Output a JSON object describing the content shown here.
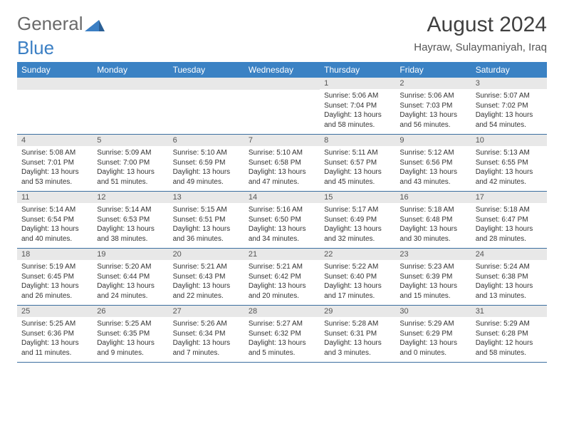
{
  "logo": {
    "text1": "General",
    "text2": "Blue"
  },
  "title": "August 2024",
  "location": "Hayraw, Sulaymaniyah, Iraq",
  "colors": {
    "header_bg": "#3b82c4",
    "header_text": "#ffffff",
    "daynum_bg": "#e8e8e8",
    "row_border": "#3b6fa0",
    "logo_gray": "#6a6a6a",
    "logo_blue": "#3b7fc4",
    "body_text": "#333333",
    "page_bg": "#ffffff"
  },
  "typography": {
    "title_fontsize": 30,
    "location_fontsize": 15,
    "weekday_fontsize": 12,
    "daynum_fontsize": 11,
    "cell_fontsize": 10
  },
  "weekdays": [
    "Sunday",
    "Monday",
    "Tuesday",
    "Wednesday",
    "Thursday",
    "Friday",
    "Saturday"
  ],
  "grid": [
    [
      null,
      null,
      null,
      null,
      {
        "n": "1",
        "sr": "5:06 AM",
        "ss": "7:04 PM",
        "dl": "13 hours and 58 minutes."
      },
      {
        "n": "2",
        "sr": "5:06 AM",
        "ss": "7:03 PM",
        "dl": "13 hours and 56 minutes."
      },
      {
        "n": "3",
        "sr": "5:07 AM",
        "ss": "7:02 PM",
        "dl": "13 hours and 54 minutes."
      }
    ],
    [
      {
        "n": "4",
        "sr": "5:08 AM",
        "ss": "7:01 PM",
        "dl": "13 hours and 53 minutes."
      },
      {
        "n": "5",
        "sr": "5:09 AM",
        "ss": "7:00 PM",
        "dl": "13 hours and 51 minutes."
      },
      {
        "n": "6",
        "sr": "5:10 AM",
        "ss": "6:59 PM",
        "dl": "13 hours and 49 minutes."
      },
      {
        "n": "7",
        "sr": "5:10 AM",
        "ss": "6:58 PM",
        "dl": "13 hours and 47 minutes."
      },
      {
        "n": "8",
        "sr": "5:11 AM",
        "ss": "6:57 PM",
        "dl": "13 hours and 45 minutes."
      },
      {
        "n": "9",
        "sr": "5:12 AM",
        "ss": "6:56 PM",
        "dl": "13 hours and 43 minutes."
      },
      {
        "n": "10",
        "sr": "5:13 AM",
        "ss": "6:55 PM",
        "dl": "13 hours and 42 minutes."
      }
    ],
    [
      {
        "n": "11",
        "sr": "5:14 AM",
        "ss": "6:54 PM",
        "dl": "13 hours and 40 minutes."
      },
      {
        "n": "12",
        "sr": "5:14 AM",
        "ss": "6:53 PM",
        "dl": "13 hours and 38 minutes."
      },
      {
        "n": "13",
        "sr": "5:15 AM",
        "ss": "6:51 PM",
        "dl": "13 hours and 36 minutes."
      },
      {
        "n": "14",
        "sr": "5:16 AM",
        "ss": "6:50 PM",
        "dl": "13 hours and 34 minutes."
      },
      {
        "n": "15",
        "sr": "5:17 AM",
        "ss": "6:49 PM",
        "dl": "13 hours and 32 minutes."
      },
      {
        "n": "16",
        "sr": "5:18 AM",
        "ss": "6:48 PM",
        "dl": "13 hours and 30 minutes."
      },
      {
        "n": "17",
        "sr": "5:18 AM",
        "ss": "6:47 PM",
        "dl": "13 hours and 28 minutes."
      }
    ],
    [
      {
        "n": "18",
        "sr": "5:19 AM",
        "ss": "6:45 PM",
        "dl": "13 hours and 26 minutes."
      },
      {
        "n": "19",
        "sr": "5:20 AM",
        "ss": "6:44 PM",
        "dl": "13 hours and 24 minutes."
      },
      {
        "n": "20",
        "sr": "5:21 AM",
        "ss": "6:43 PM",
        "dl": "13 hours and 22 minutes."
      },
      {
        "n": "21",
        "sr": "5:21 AM",
        "ss": "6:42 PM",
        "dl": "13 hours and 20 minutes."
      },
      {
        "n": "22",
        "sr": "5:22 AM",
        "ss": "6:40 PM",
        "dl": "13 hours and 17 minutes."
      },
      {
        "n": "23",
        "sr": "5:23 AM",
        "ss": "6:39 PM",
        "dl": "13 hours and 15 minutes."
      },
      {
        "n": "24",
        "sr": "5:24 AM",
        "ss": "6:38 PM",
        "dl": "13 hours and 13 minutes."
      }
    ],
    [
      {
        "n": "25",
        "sr": "5:25 AM",
        "ss": "6:36 PM",
        "dl": "13 hours and 11 minutes."
      },
      {
        "n": "26",
        "sr": "5:25 AM",
        "ss": "6:35 PM",
        "dl": "13 hours and 9 minutes."
      },
      {
        "n": "27",
        "sr": "5:26 AM",
        "ss": "6:34 PM",
        "dl": "13 hours and 7 minutes."
      },
      {
        "n": "28",
        "sr": "5:27 AM",
        "ss": "6:32 PM",
        "dl": "13 hours and 5 minutes."
      },
      {
        "n": "29",
        "sr": "5:28 AM",
        "ss": "6:31 PM",
        "dl": "13 hours and 3 minutes."
      },
      {
        "n": "30",
        "sr": "5:29 AM",
        "ss": "6:29 PM",
        "dl": "13 hours and 0 minutes."
      },
      {
        "n": "31",
        "sr": "5:29 AM",
        "ss": "6:28 PM",
        "dl": "12 hours and 58 minutes."
      }
    ]
  ],
  "labels": {
    "sunrise": "Sunrise:",
    "sunset": "Sunset:",
    "daylight": "Daylight:"
  }
}
